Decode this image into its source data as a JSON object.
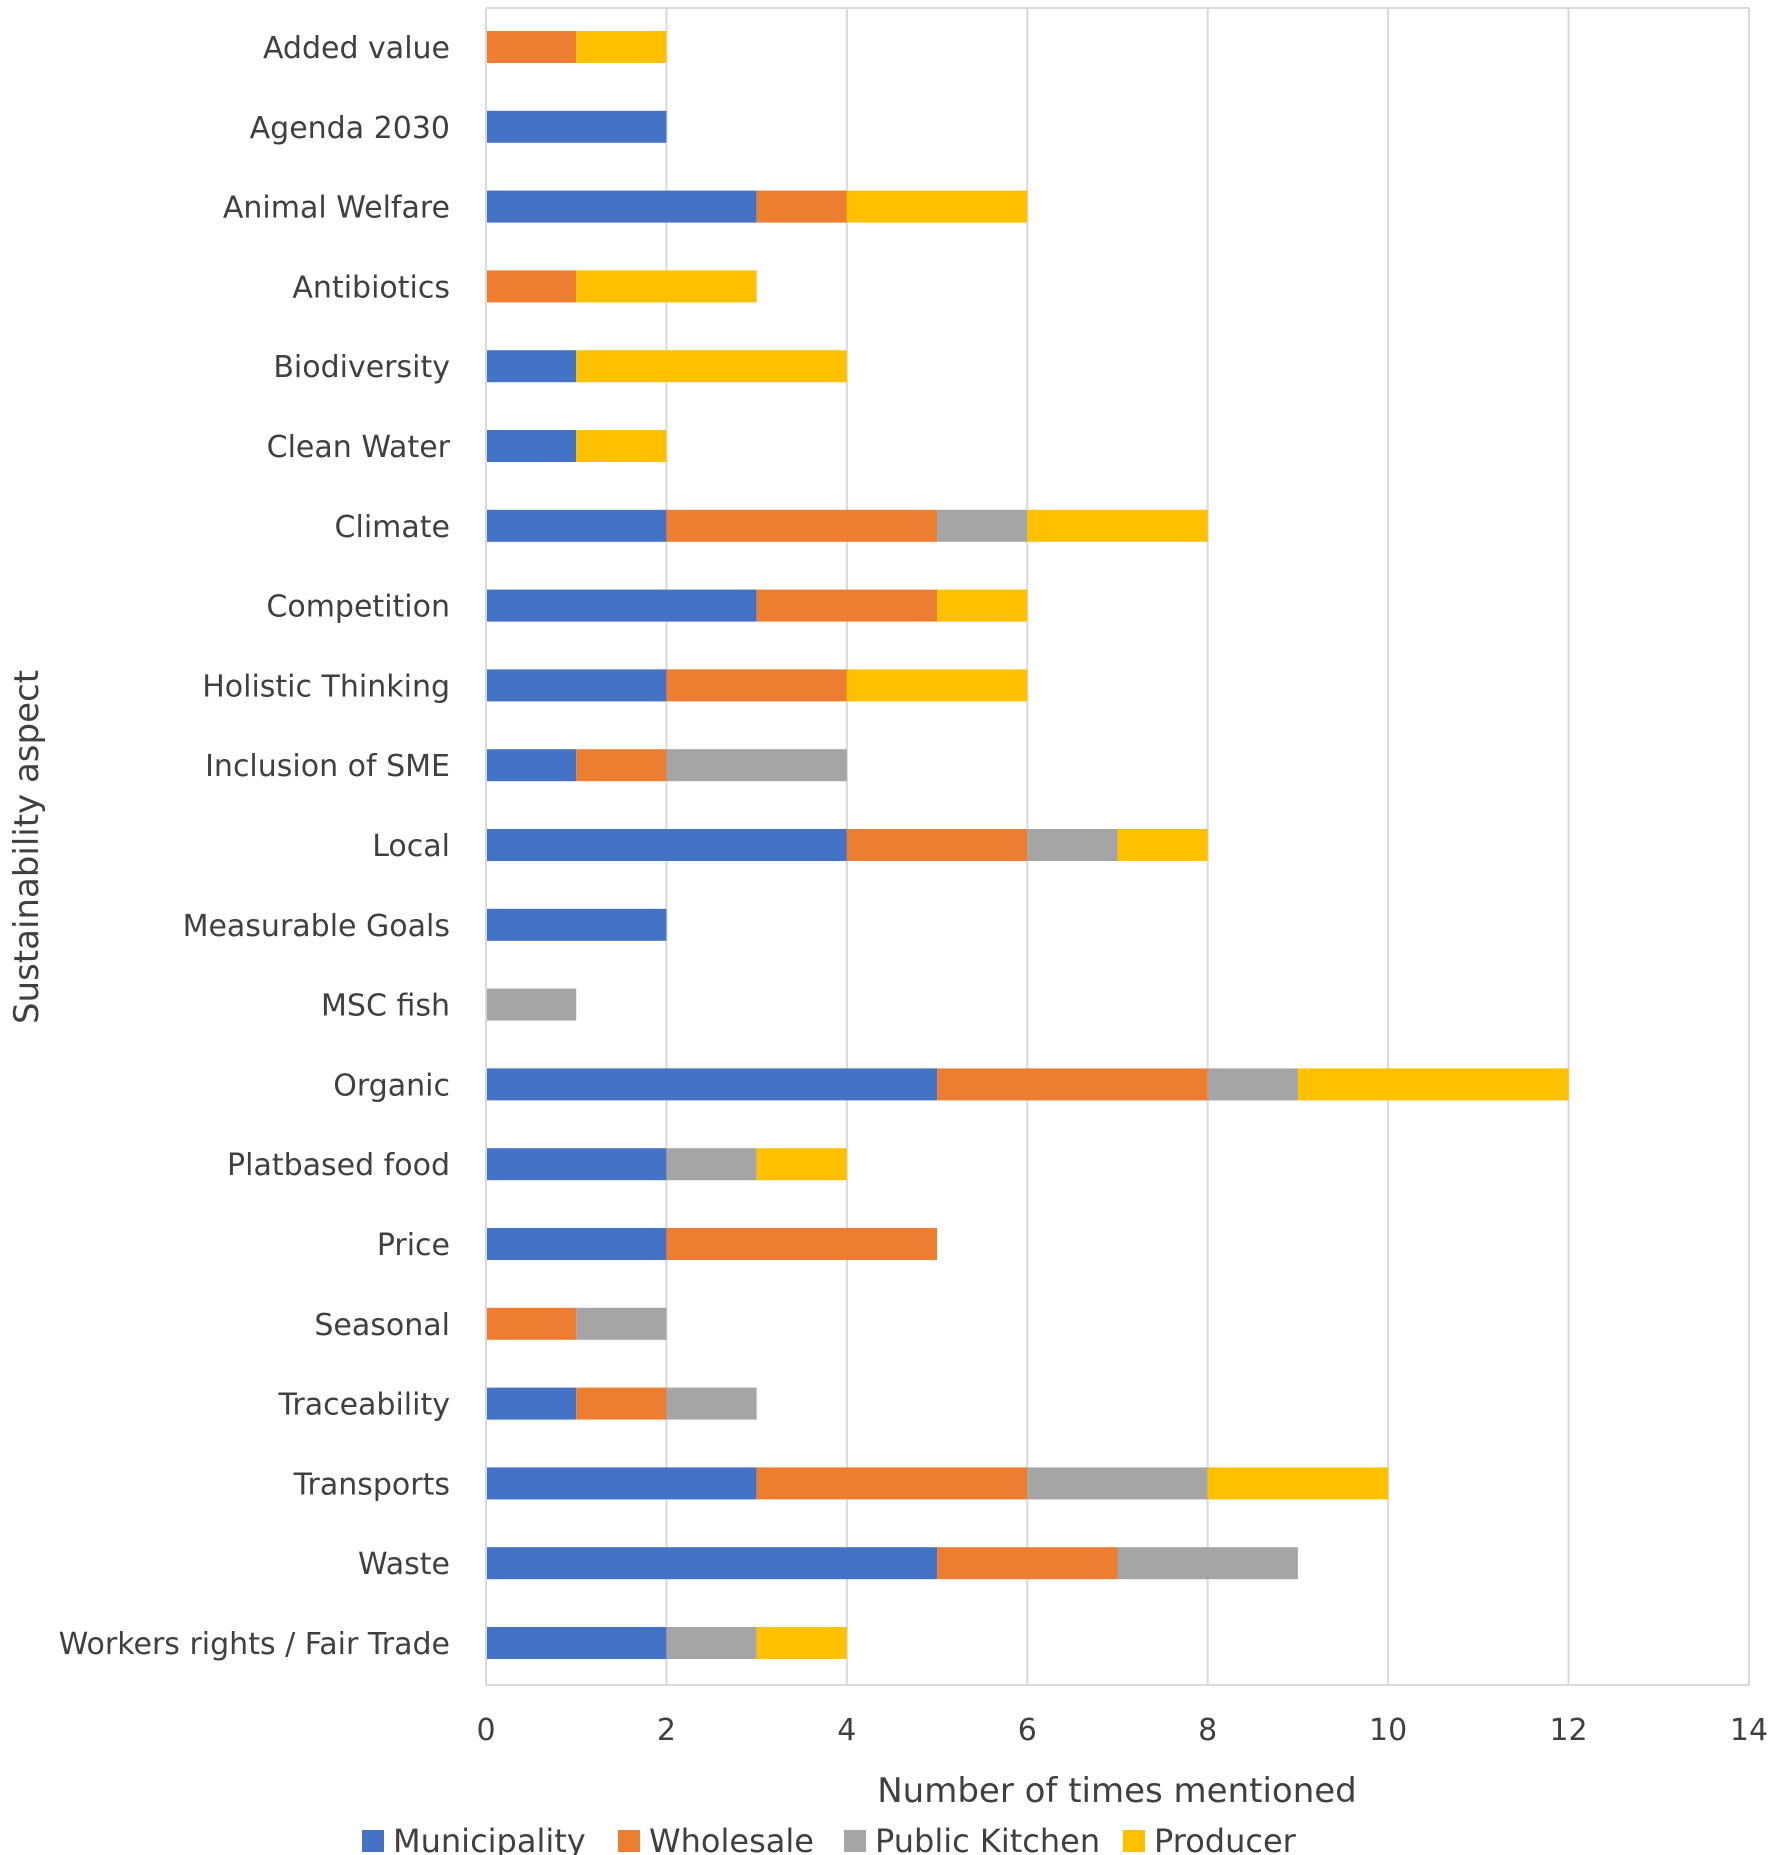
{
  "chart_data": {
    "type": "bar",
    "orientation": "horizontal",
    "stacked": true,
    "title": "",
    "xlabel": "Number of times mentioned",
    "ylabel": "Sustainability aspect",
    "xlim": [
      0,
      14
    ],
    "x_ticks": [
      0,
      2,
      4,
      6,
      8,
      10,
      12,
      14
    ],
    "grid": true,
    "legend_position": "bottom",
    "categories": [
      "Added value",
      "Agenda 2030",
      "Animal Welfare",
      "Antibiotics",
      "Biodiversity",
      "Clean Water",
      "Climate",
      "Competition",
      "Holistic Thinking",
      "Inclusion of SME",
      "Local",
      "Measurable Goals",
      "MSC fish",
      "Organic",
      "Platbased food",
      "Price",
      "Seasonal",
      "Traceability",
      "Transports",
      "Waste",
      "Workers rights / Fair Trade"
    ],
    "series": [
      {
        "name": "Municipality",
        "color": "#4472C4",
        "values": [
          0,
          2,
          3,
          0,
          1,
          1,
          2,
          3,
          2,
          1,
          4,
          2,
          0,
          5,
          2,
          2,
          0,
          1,
          3,
          5,
          2
        ]
      },
      {
        "name": "Wholesale",
        "color": "#ED7D31",
        "values": [
          1,
          0,
          1,
          1,
          0,
          0,
          3,
          2,
          2,
          1,
          2,
          0,
          0,
          3,
          0,
          3,
          1,
          1,
          3,
          2,
          0
        ]
      },
      {
        "name": "Public Kitchen",
        "color": "#A5A5A5",
        "values": [
          0,
          0,
          0,
          0,
          0,
          0,
          1,
          0,
          0,
          2,
          1,
          0,
          1,
          1,
          1,
          0,
          1,
          1,
          2,
          2,
          1
        ]
      },
      {
        "name": "Producer",
        "color": "#FFC000",
        "values": [
          1,
          0,
          2,
          2,
          3,
          1,
          2,
          1,
          2,
          0,
          1,
          0,
          0,
          3,
          1,
          0,
          0,
          0,
          2,
          0,
          1
        ]
      }
    ]
  }
}
